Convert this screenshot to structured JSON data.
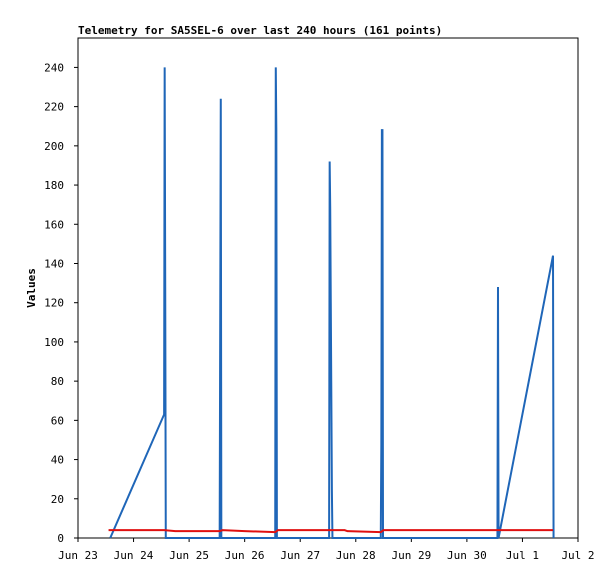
{
  "chart_data": {
    "type": "line",
    "title": "Telemetry for SA5SEL-6 over last 240 hours (161 points)",
    "y_label": "Values",
    "xlim": [
      0,
      9
    ],
    "xticks": [
      {
        "value": 0,
        "label": "Jun 23"
      },
      {
        "value": 1,
        "label": "Jun 24"
      },
      {
        "value": 2,
        "label": "Jun 25"
      },
      {
        "value": 3,
        "label": "Jun 26"
      },
      {
        "value": 4,
        "label": "Jun 27"
      },
      {
        "value": 5,
        "label": "Jun 28"
      },
      {
        "value": 6,
        "label": "Jun 29"
      },
      {
        "value": 7,
        "label": "Jun 30"
      },
      {
        "value": 8,
        "label": "Jul 1"
      },
      {
        "value": 9,
        "label": "Jul 2"
      }
    ],
    "ylim": [
      0,
      255
    ],
    "yticks": [
      0,
      20,
      40,
      60,
      80,
      100,
      120,
      140,
      160,
      180,
      200,
      220,
      240
    ],
    "series": [
      {
        "color": "#1f66b8",
        "x": [
          0.58,
          1.55,
          1.56,
          1.57,
          1.58,
          2.55,
          2.56,
          2.57,
          2.58,
          3.55,
          3.56,
          3.57,
          3.58,
          4.52,
          4.53,
          4.54,
          4.55,
          4.56,
          4.57,
          4.58,
          5.45,
          5.46,
          5.47,
          5.48,
          5.49,
          7.55,
          7.56,
          7.57,
          8.55,
          8.56
        ],
        "values": [
          0,
          63,
          240,
          128,
          0,
          0,
          112,
          224,
          0,
          0,
          240,
          208,
          0,
          0,
          192,
          168,
          120,
          72,
          24,
          0,
          0,
          48,
          208,
          208,
          0,
          0,
          128,
          0,
          144,
          0
        ]
      },
      {
        "color": "#e01010",
        "x": [
          0.55,
          1.55,
          1.75,
          2.55,
          2.6,
          3.0,
          3.55,
          3.6,
          4.8,
          4.85,
          5.45,
          5.5,
          8.55
        ],
        "values": [
          4,
          4,
          3.5,
          3.5,
          4,
          3.5,
          3,
          4,
          4,
          3.5,
          3,
          4,
          4
        ]
      }
    ]
  }
}
